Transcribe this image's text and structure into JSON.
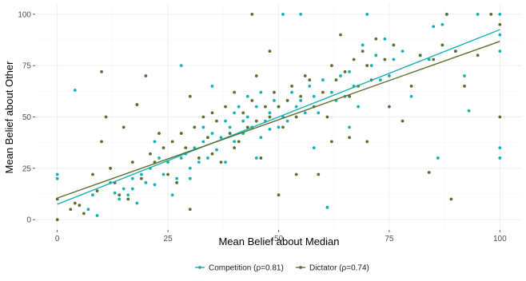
{
  "chart_data": {
    "type": "scatter",
    "xlabel": "Mean Belief about Median",
    "ylabel": "Mean Belief about Other",
    "xlim": [
      -5,
      105
    ],
    "ylim": [
      -5,
      105
    ],
    "xticks": [
      0,
      25,
      50,
      75,
      100
    ],
    "yticks": [
      0,
      25,
      50,
      75,
      100
    ],
    "grid": true,
    "legend_position": "bottom",
    "series": [
      {
        "name": "Competition (ρ=0.81)",
        "color": "#17b0b0",
        "fit": {
          "x": [
            0,
            100
          ],
          "y": [
            7.5,
            92.5
          ]
        },
        "points": [
          [
            0,
            22
          ],
          [
            0,
            20
          ],
          [
            4,
            63
          ],
          [
            7,
            5
          ],
          [
            8,
            12
          ],
          [
            9,
            2
          ],
          [
            12,
            18
          ],
          [
            13,
            13
          ],
          [
            14,
            10
          ],
          [
            15,
            15
          ],
          [
            16,
            12
          ],
          [
            17,
            20
          ],
          [
            17,
            15
          ],
          [
            18,
            8
          ],
          [
            19,
            22
          ],
          [
            20,
            18
          ],
          [
            21,
            25
          ],
          [
            22,
            17
          ],
          [
            22,
            38
          ],
          [
            23,
            30
          ],
          [
            24,
            22
          ],
          [
            25,
            28
          ],
          [
            26,
            12
          ],
          [
            27,
            20
          ],
          [
            28,
            75
          ],
          [
            28,
            30
          ],
          [
            29,
            32
          ],
          [
            30,
            25
          ],
          [
            30,
            20
          ],
          [
            31,
            35
          ],
          [
            32,
            28
          ],
          [
            33,
            38
          ],
          [
            33,
            45
          ],
          [
            34,
            30
          ],
          [
            35,
            42
          ],
          [
            35,
            65
          ],
          [
            36,
            34
          ],
          [
            37,
            40
          ],
          [
            38,
            48
          ],
          [
            38,
            28
          ],
          [
            39,
            45
          ],
          [
            40,
            52
          ],
          [
            40,
            38
          ],
          [
            41,
            55
          ],
          [
            42,
            42
          ],
          [
            42,
            48
          ],
          [
            43,
            60
          ],
          [
            43,
            50
          ],
          [
            44,
            45
          ],
          [
            45,
            55
          ],
          [
            45,
            30
          ],
          [
            46,
            40
          ],
          [
            46,
            62
          ],
          [
            47,
            48
          ],
          [
            48,
            52
          ],
          [
            48,
            44
          ],
          [
            49,
            58
          ],
          [
            50,
            55
          ],
          [
            50,
            45
          ],
          [
            51,
            100
          ],
          [
            51,
            50
          ],
          [
            52,
            48
          ],
          [
            53,
            62
          ],
          [
            54,
            55
          ],
          [
            55,
            100
          ],
          [
            55,
            58
          ],
          [
            56,
            52
          ],
          [
            57,
            65
          ],
          [
            58,
            60
          ],
          [
            59,
            52
          ],
          [
            60,
            68
          ],
          [
            61,
            6
          ],
          [
            62,
            62
          ],
          [
            63,
            58
          ],
          [
            64,
            70
          ],
          [
            65,
            60
          ],
          [
            66,
            72
          ],
          [
            67,
            65
          ],
          [
            68,
            55
          ],
          [
            69,
            85
          ],
          [
            70,
            100
          ],
          [
            71,
            75
          ],
          [
            72,
            80
          ],
          [
            73,
            68
          ],
          [
            75,
            70
          ],
          [
            76,
            78
          ],
          [
            78,
            82
          ],
          [
            80,
            60
          ],
          [
            82,
            80
          ],
          [
            84,
            78
          ],
          [
            85,
            94
          ],
          [
            86,
            30
          ],
          [
            87,
            95
          ],
          [
            88,
            100
          ],
          [
            90,
            82
          ],
          [
            92,
            70
          ],
          [
            95,
            100
          ],
          [
            100,
            100
          ],
          [
            100,
            35
          ],
          [
            100,
            30
          ],
          [
            100,
            82
          ],
          [
            100,
            90
          ],
          [
            93,
            53
          ],
          [
            74,
            88
          ],
          [
            66,
            45
          ],
          [
            58,
            35
          ]
        ]
      },
      {
        "name": "Dictator (ρ=0.74)",
        "color": "#5a6e2e",
        "fit": {
          "x": [
            0,
            100
          ],
          "y": [
            10.5,
            86.8
          ]
        },
        "points": [
          [
            0,
            10
          ],
          [
            0,
            0
          ],
          [
            3,
            5
          ],
          [
            4,
            8
          ],
          [
            5,
            7
          ],
          [
            6,
            3
          ],
          [
            8,
            22
          ],
          [
            9,
            14
          ],
          [
            10,
            72
          ],
          [
            10,
            38
          ],
          [
            11,
            50
          ],
          [
            12,
            25
          ],
          [
            13,
            18
          ],
          [
            14,
            12
          ],
          [
            15,
            45
          ],
          [
            16,
            10
          ],
          [
            17,
            28
          ],
          [
            18,
            56
          ],
          [
            19,
            20
          ],
          [
            20,
            70
          ],
          [
            21,
            32
          ],
          [
            22,
            28
          ],
          [
            23,
            42
          ],
          [
            24,
            35
          ],
          [
            25,
            22
          ],
          [
            26,
            38
          ],
          [
            27,
            18
          ],
          [
            28,
            42
          ],
          [
            29,
            35
          ],
          [
            30,
            5
          ],
          [
            30,
            60
          ],
          [
            31,
            45
          ],
          [
            32,
            30
          ],
          [
            33,
            50
          ],
          [
            34,
            40
          ],
          [
            35,
            32
          ],
          [
            36,
            48
          ],
          [
            37,
            28
          ],
          [
            38,
            55
          ],
          [
            39,
            42
          ],
          [
            40,
            62
          ],
          [
            40,
            35
          ],
          [
            41,
            38
          ],
          [
            42,
            52
          ],
          [
            43,
            45
          ],
          [
            44,
            100
          ],
          [
            44,
            58
          ],
          [
            45,
            48
          ],
          [
            46,
            30
          ],
          [
            47,
            55
          ],
          [
            48,
            82
          ],
          [
            48,
            50
          ],
          [
            49,
            62
          ],
          [
            50,
            12
          ],
          [
            50,
            55
          ],
          [
            51,
            45
          ],
          [
            52,
            58
          ],
          [
            53,
            65
          ],
          [
            54,
            50
          ],
          [
            55,
            60
          ],
          [
            56,
            70
          ],
          [
            57,
            68
          ],
          [
            58,
            55
          ],
          [
            59,
            22
          ],
          [
            60,
            62
          ],
          [
            61,
            50
          ],
          [
            62,
            75
          ],
          [
            63,
            68
          ],
          [
            64,
            90
          ],
          [
            65,
            72
          ],
          [
            66,
            60
          ],
          [
            67,
            78
          ],
          [
            68,
            65
          ],
          [
            69,
            82
          ],
          [
            70,
            75
          ],
          [
            71,
            68
          ],
          [
            72,
            88
          ],
          [
            74,
            78
          ],
          [
            75,
            55
          ],
          [
            76,
            85
          ],
          [
            78,
            48
          ],
          [
            80,
            65
          ],
          [
            82,
            80
          ],
          [
            84,
            23
          ],
          [
            85,
            78
          ],
          [
            87,
            85
          ],
          [
            88,
            100
          ],
          [
            89,
            10
          ],
          [
            90,
            82
          ],
          [
            92,
            65
          ],
          [
            95,
            80
          ],
          [
            98,
            100
          ],
          [
            100,
            50
          ],
          [
            100,
            95
          ],
          [
            66,
            40
          ],
          [
            70,
            38
          ],
          [
            54,
            22
          ],
          [
            62,
            38
          ],
          [
            45,
            70
          ],
          [
            35,
            52
          ]
        ]
      }
    ]
  }
}
